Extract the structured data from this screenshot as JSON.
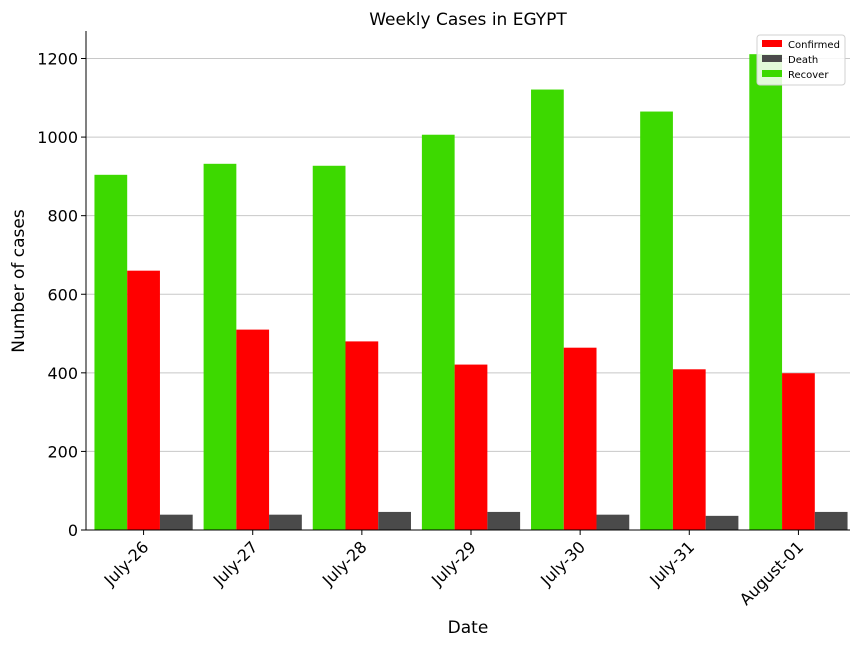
{
  "chart_data": {
    "type": "bar",
    "title": "Weekly Cases in EGYPT",
    "xlabel": "Date",
    "ylabel": "Number of cases",
    "categories": [
      "July-26",
      "July-27",
      "July-28",
      "July-29",
      "July-30",
      "July-31",
      "August-01"
    ],
    "series": [
      {
        "name": "Recover",
        "color": "#3dd900",
        "values": [
          904,
          932,
          927,
          1006,
          1121,
          1065,
          1211
        ]
      },
      {
        "name": "Confirmed",
        "color": "#ff0000",
        "values": [
          660,
          510,
          480,
          421,
          464,
          409,
          399
        ]
      },
      {
        "name": "Death",
        "color": "#4a4a4a",
        "values": [
          39,
          39,
          46,
          46,
          39,
          36,
          46
        ]
      }
    ],
    "legend_order": [
      "Confirmed",
      "Death",
      "Recover"
    ],
    "legend_position": "top-right",
    "ylim": [
      0,
      1270
    ],
    "yticks": [
      0,
      200,
      400,
      600,
      800,
      1000,
      1200
    ],
    "grid": "horizontal"
  }
}
